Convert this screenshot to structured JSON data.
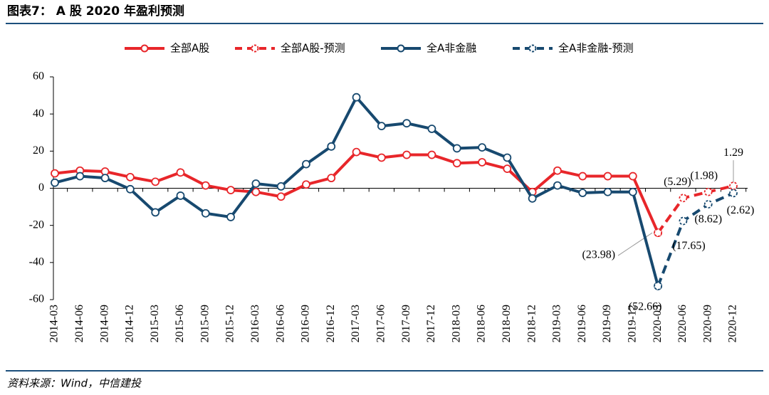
{
  "chart_data": {
    "type": "line",
    "title": "图表7： A 股 2020 年盈利预测",
    "source": "资料来源：Wind，中信建投",
    "categories": [
      "2014-03",
      "2014-06",
      "2014-09",
      "2014-12",
      "2015-03",
      "2015-06",
      "2015-09",
      "2015-12",
      "2016-03",
      "2016-06",
      "2016-09",
      "2016-12",
      "2017-03",
      "2017-06",
      "2017-09",
      "2017-12",
      "2018-03",
      "2018-06",
      "2018-09",
      "2018-12",
      "2019-03",
      "2019-06",
      "2019-09",
      "2019-12",
      "2020-03",
      "2020-06",
      "2020-09",
      "2020-12"
    ],
    "ylim": [
      -60,
      60
    ],
    "yticks": [
      -60,
      -40,
      -20,
      0,
      20,
      40,
      60
    ],
    "grid": false,
    "series": [
      {
        "name": "全部A股",
        "color": "#e8262a",
        "dashed": false,
        "values": [
          8,
          9.5,
          9,
          6,
          3.5,
          8.5,
          1.5,
          -1,
          -2,
          -4.5,
          2,
          5.5,
          19.5,
          16.5,
          18,
          18,
          13.5,
          14,
          10.5,
          -2,
          9.5,
          6.5,
          6.5,
          6.5,
          -23.98,
          null,
          null,
          null
        ]
      },
      {
        "name": "全部A股-预测",
        "color": "#e8262a",
        "dashed": true,
        "values": [
          null,
          null,
          null,
          null,
          null,
          null,
          null,
          null,
          null,
          null,
          null,
          null,
          null,
          null,
          null,
          null,
          null,
          null,
          null,
          null,
          null,
          null,
          null,
          null,
          -23.98,
          -5.29,
          -1.98,
          1.29
        ],
        "value_labels": [
          null,
          null,
          null,
          null,
          null,
          null,
          null,
          null,
          null,
          null,
          null,
          null,
          null,
          null,
          null,
          null,
          null,
          null,
          null,
          null,
          null,
          null,
          null,
          null,
          "(23.98)",
          "(5.29)",
          "(1.98)",
          "1.29"
        ]
      },
      {
        "name": "全A非金融",
        "color": "#17496f",
        "dashed": false,
        "values": [
          3,
          6.5,
          5.5,
          -0.5,
          -13,
          -4,
          -13.5,
          -15.5,
          2.5,
          1,
          13,
          22.5,
          49,
          33.5,
          35,
          32,
          21.5,
          22,
          16.5,
          -5.5,
          1.5,
          -2.5,
          -2,
          -2,
          -52.66,
          null,
          null,
          null
        ]
      },
      {
        "name": "全A非金融-预测",
        "color": "#17496f",
        "dashed": true,
        "values": [
          null,
          null,
          null,
          null,
          null,
          null,
          null,
          null,
          null,
          null,
          null,
          null,
          null,
          null,
          null,
          null,
          null,
          null,
          null,
          null,
          null,
          null,
          null,
          null,
          -52.66,
          -17.65,
          -8.62,
          -2.62
        ],
        "value_labels": [
          null,
          null,
          null,
          null,
          null,
          null,
          null,
          null,
          null,
          null,
          null,
          null,
          null,
          null,
          null,
          null,
          null,
          null,
          null,
          null,
          null,
          null,
          null,
          null,
          "(52.66)",
          "(17.65)",
          "(8.62)",
          "(2.62)"
        ]
      }
    ]
  }
}
